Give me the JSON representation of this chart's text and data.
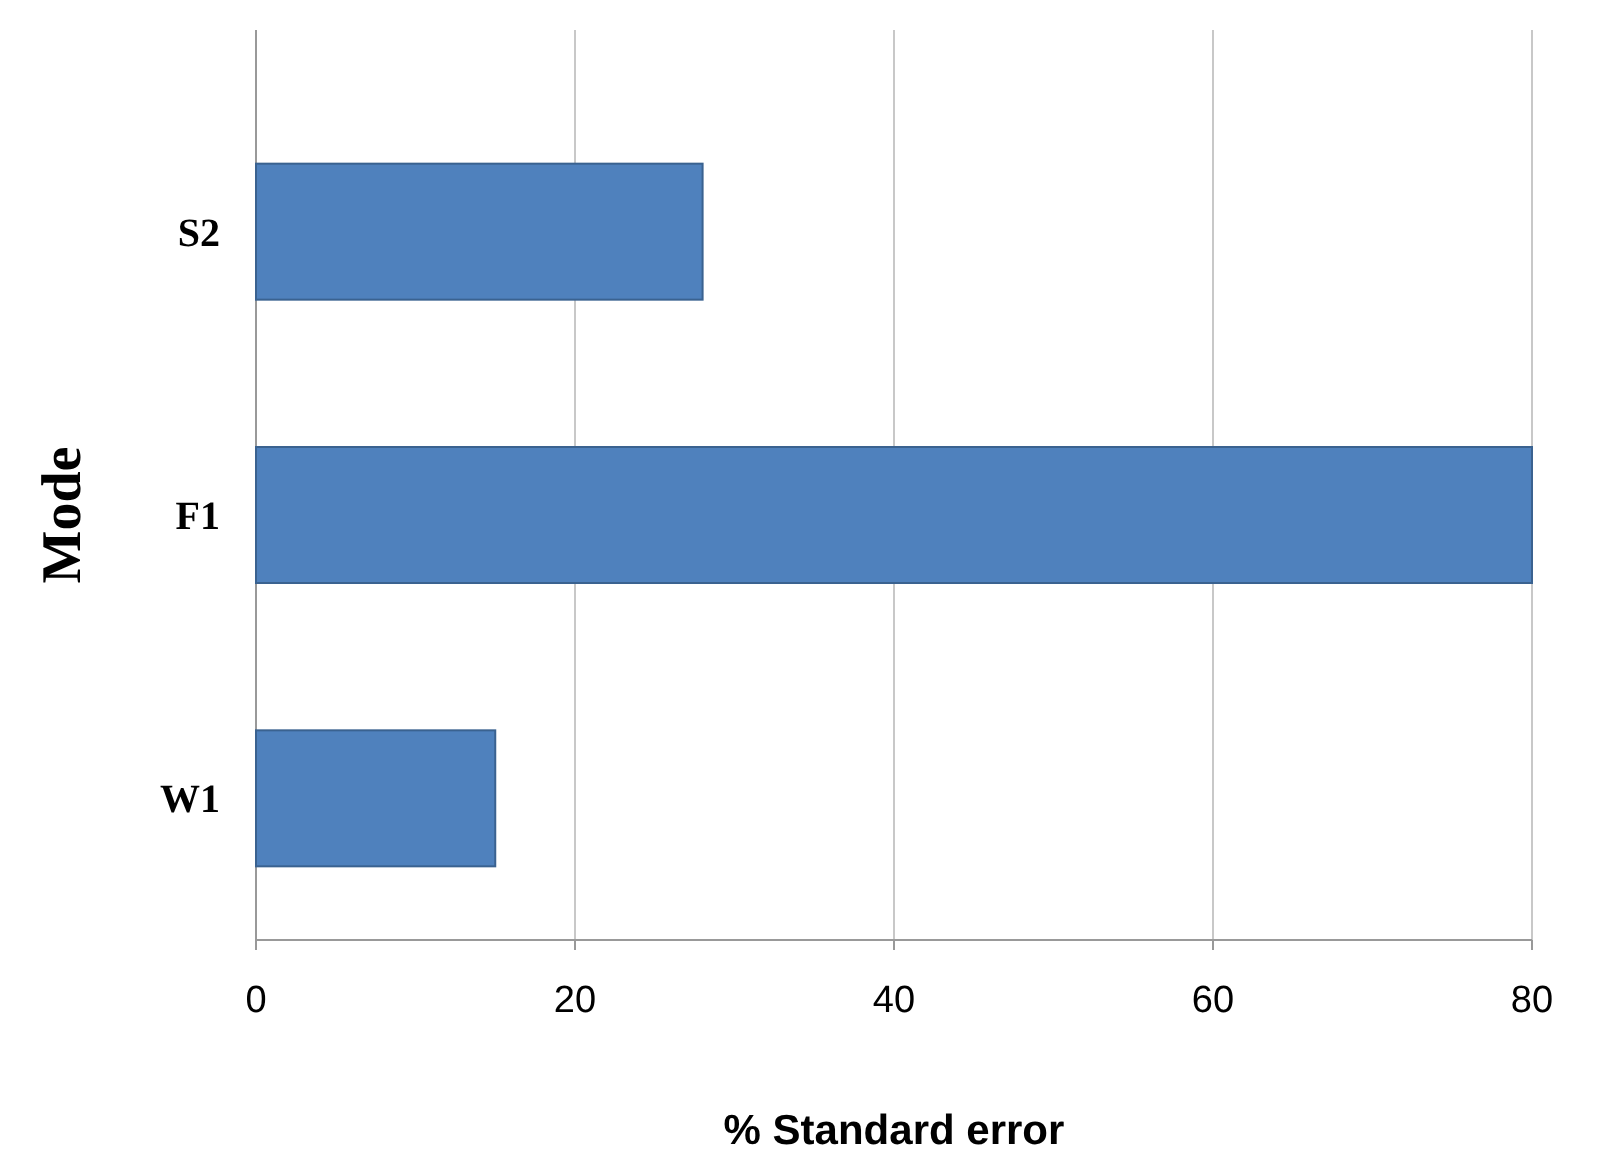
{
  "chart_data": {
    "type": "bar",
    "orientation": "horizontal",
    "categories": [
      "S2",
      "F1",
      "W1"
    ],
    "values": [
      28,
      80,
      15
    ],
    "color": "#4f81bd",
    "xlim": [
      0,
      80
    ],
    "xticks": [
      0,
      20,
      40,
      60,
      80
    ],
    "grid": "x",
    "xlabel": "% Standard error",
    "ylabel": "Mode"
  }
}
